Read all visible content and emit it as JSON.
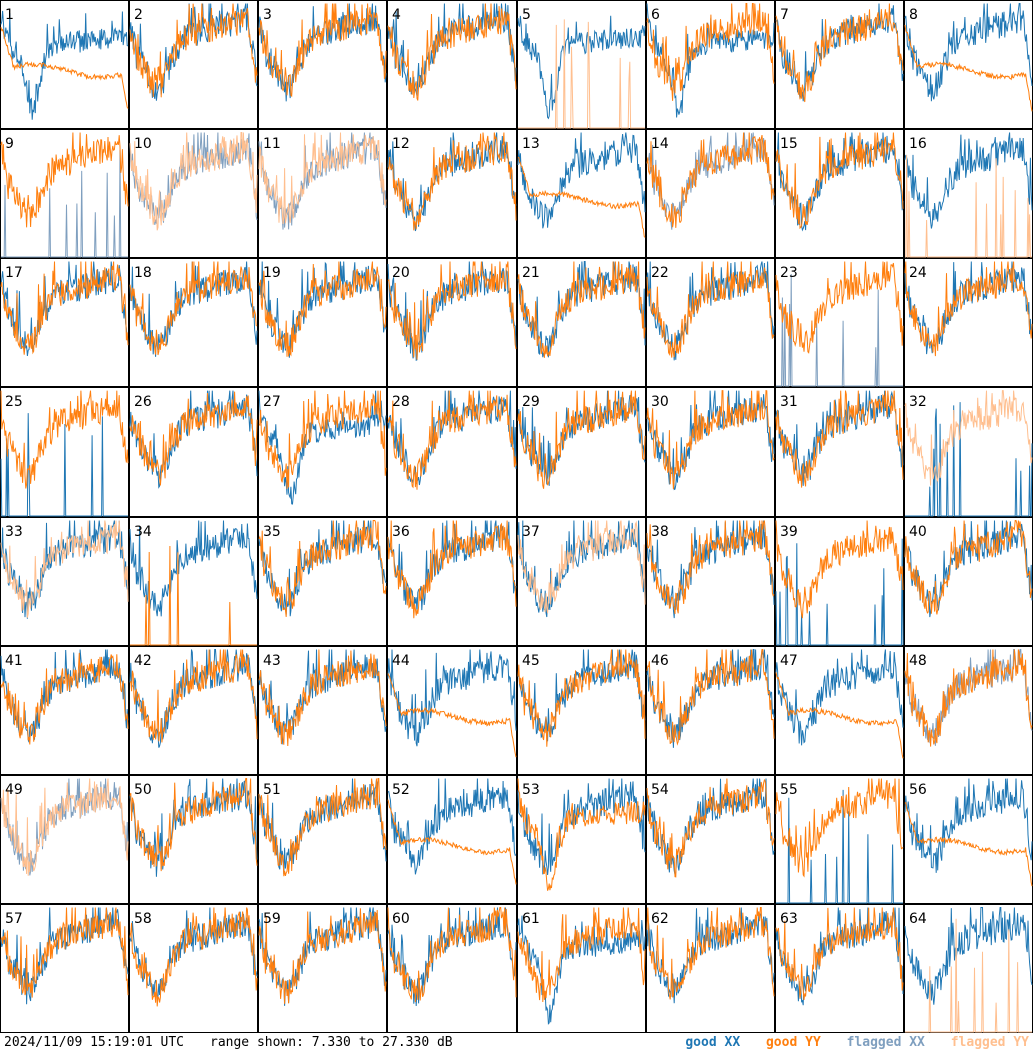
{
  "footer": {
    "timestamp": "2024/11/09 15:19:01 UTC",
    "range_text": "range shown: 7.330 to 27.330 dB"
  },
  "legend": {
    "good_xx": {
      "label": "good XX",
      "color": "#1f77b4"
    },
    "good_yy": {
      "label": "good YY",
      "color": "#ff7f0e"
    },
    "flagged_xx": {
      "label": "flagged XX",
      "color": "#7f9fbf"
    },
    "flagged_yy": {
      "label": "flagged YY",
      "color": "#ffbf8f"
    }
  },
  "chart_data": {
    "type": "line",
    "ylim": [
      7.33,
      27.33
    ],
    "yunit": "dB",
    "grid_rows": 8,
    "grid_cols": 8,
    "panels": [
      {
        "label": "1",
        "xx": "good",
        "yy": "good",
        "xxp": "dip",
        "yyp": "flat"
      },
      {
        "label": "2",
        "xx": "good",
        "yy": "good",
        "xxp": "normal",
        "yyp": "normal"
      },
      {
        "label": "3",
        "xx": "good",
        "yy": "good",
        "xxp": "normal",
        "yyp": "normal"
      },
      {
        "label": "4",
        "xx": "good",
        "yy": "good",
        "xxp": "normal",
        "yyp": "normal"
      },
      {
        "label": "5",
        "xx": "good",
        "yy": "flagged",
        "xxp": "dip",
        "yyp": "spikes"
      },
      {
        "label": "6",
        "xx": "good",
        "yy": "good",
        "xxp": "dip",
        "yyp": "normal"
      },
      {
        "label": "7",
        "xx": "good",
        "yy": "good",
        "xxp": "normal",
        "yyp": "normal"
      },
      {
        "label": "8",
        "xx": "good",
        "yy": "good",
        "xxp": "normal",
        "yyp": "flat"
      },
      {
        "label": "9",
        "xx": "flagged",
        "yy": "good",
        "xxp": "spikes",
        "yyp": "normal"
      },
      {
        "label": "10",
        "xx": "flagged",
        "yy": "flagged",
        "xxp": "normal",
        "yyp": "normal"
      },
      {
        "label": "11",
        "xx": "flagged",
        "yy": "flagged",
        "xxp": "normal",
        "yyp": "normal"
      },
      {
        "label": "12",
        "xx": "good",
        "yy": "good",
        "xxp": "normal",
        "yyp": "normal"
      },
      {
        "label": "13",
        "xx": "good",
        "yy": "good",
        "xxp": "normal",
        "yyp": "flat"
      },
      {
        "label": "14",
        "xx": "flagged",
        "yy": "good",
        "xxp": "normal",
        "yyp": "normal"
      },
      {
        "label": "15",
        "xx": "good",
        "yy": "good",
        "xxp": "normal",
        "yyp": "normal"
      },
      {
        "label": "16",
        "xx": "good",
        "yy": "flagged",
        "xxp": "normal",
        "yyp": "spikes"
      },
      {
        "label": "17",
        "xx": "good",
        "yy": "good",
        "xxp": "normal",
        "yyp": "normal"
      },
      {
        "label": "18",
        "xx": "good",
        "yy": "good",
        "xxp": "normal",
        "yyp": "normal"
      },
      {
        "label": "19",
        "xx": "good",
        "yy": "good",
        "xxp": "normal",
        "yyp": "normal"
      },
      {
        "label": "20",
        "xx": "good",
        "yy": "good",
        "xxp": "normal",
        "yyp": "normal"
      },
      {
        "label": "21",
        "xx": "good",
        "yy": "good",
        "xxp": "normal",
        "yyp": "normal"
      },
      {
        "label": "22",
        "xx": "good",
        "yy": "good",
        "xxp": "normal",
        "yyp": "normal"
      },
      {
        "label": "23",
        "xx": "flagged",
        "yy": "good",
        "xxp": "spikes",
        "yyp": "normal"
      },
      {
        "label": "24",
        "xx": "good",
        "yy": "good",
        "xxp": "normal",
        "yyp": "normal"
      },
      {
        "label": "25",
        "xx": "good",
        "yy": "good",
        "xxp": "spikes",
        "yyp": "normal"
      },
      {
        "label": "26",
        "xx": "good",
        "yy": "good",
        "xxp": "normal",
        "yyp": "normal"
      },
      {
        "label": "27",
        "xx": "good",
        "yy": "good",
        "xxp": "dip",
        "yyp": "normal"
      },
      {
        "label": "28",
        "xx": "good",
        "yy": "good",
        "xxp": "normal",
        "yyp": "normal"
      },
      {
        "label": "29",
        "xx": "good",
        "yy": "good",
        "xxp": "normal",
        "yyp": "normal"
      },
      {
        "label": "30",
        "xx": "good",
        "yy": "good",
        "xxp": "normal",
        "yyp": "normal"
      },
      {
        "label": "31",
        "xx": "good",
        "yy": "good",
        "xxp": "normal",
        "yyp": "normal"
      },
      {
        "label": "32",
        "xx": "good",
        "yy": "flagged",
        "xxp": "spikes",
        "yyp": "normal"
      },
      {
        "label": "33",
        "xx": "good",
        "yy": "flagged",
        "xxp": "normal",
        "yyp": "normal"
      },
      {
        "label": "34",
        "xx": "good",
        "yy": "good",
        "xxp": "normal",
        "yyp": "spikes"
      },
      {
        "label": "35",
        "xx": "good",
        "yy": "good",
        "xxp": "normal",
        "yyp": "normal"
      },
      {
        "label": "36",
        "xx": "good",
        "yy": "good",
        "xxp": "normal",
        "yyp": "normal"
      },
      {
        "label": "37",
        "xx": "good",
        "yy": "flagged",
        "xxp": "normal",
        "yyp": "normal"
      },
      {
        "label": "38",
        "xx": "good",
        "yy": "good",
        "xxp": "normal",
        "yyp": "normal"
      },
      {
        "label": "39",
        "xx": "good",
        "yy": "good",
        "xxp": "spikes",
        "yyp": "normal"
      },
      {
        "label": "40",
        "xx": "good",
        "yy": "good",
        "xxp": "normal",
        "yyp": "normal"
      },
      {
        "label": "41",
        "xx": "good",
        "yy": "good",
        "xxp": "normal",
        "yyp": "normal"
      },
      {
        "label": "42",
        "xx": "good",
        "yy": "good",
        "xxp": "normal",
        "yyp": "normal"
      },
      {
        "label": "43",
        "xx": "good",
        "yy": "good",
        "xxp": "normal",
        "yyp": "normal"
      },
      {
        "label": "44",
        "xx": "good",
        "yy": "good",
        "xxp": "normal",
        "yyp": "flat"
      },
      {
        "label": "45",
        "xx": "good",
        "yy": "good",
        "xxp": "normal",
        "yyp": "normal"
      },
      {
        "label": "46",
        "xx": "good",
        "yy": "good",
        "xxp": "normal",
        "yyp": "normal"
      },
      {
        "label": "47",
        "xx": "good",
        "yy": "good",
        "xxp": "normal",
        "yyp": "flat"
      },
      {
        "label": "48",
        "xx": "flagged",
        "yy": "good",
        "xxp": "normal",
        "yyp": "normal"
      },
      {
        "label": "49",
        "xx": "flagged",
        "yy": "flagged",
        "xxp": "normal",
        "yyp": "normal"
      },
      {
        "label": "50",
        "xx": "good",
        "yy": "good",
        "xxp": "normal",
        "yyp": "normal"
      },
      {
        "label": "51",
        "xx": "good",
        "yy": "good",
        "xxp": "normal",
        "yyp": "normal"
      },
      {
        "label": "52",
        "xx": "good",
        "yy": "good",
        "xxp": "normal",
        "yyp": "flat"
      },
      {
        "label": "53",
        "xx": "good",
        "yy": "good",
        "xxp": "normal",
        "yyp": "dip"
      },
      {
        "label": "54",
        "xx": "good",
        "yy": "good",
        "xxp": "normal",
        "yyp": "normal"
      },
      {
        "label": "55",
        "xx": "good",
        "yy": "good",
        "xxp": "spikes",
        "yyp": "normal"
      },
      {
        "label": "56",
        "xx": "good",
        "yy": "good",
        "xxp": "normal",
        "yyp": "flat"
      },
      {
        "label": "57",
        "xx": "good",
        "yy": "good",
        "xxp": "normal",
        "yyp": "normal"
      },
      {
        "label": "58",
        "xx": "good",
        "yy": "good",
        "xxp": "normal",
        "yyp": "normal"
      },
      {
        "label": "59",
        "xx": "good",
        "yy": "good",
        "xxp": "normal",
        "yyp": "normal"
      },
      {
        "label": "60",
        "xx": "good",
        "yy": "good",
        "xxp": "normal",
        "yyp": "normal"
      },
      {
        "label": "61",
        "xx": "good",
        "yy": "good",
        "xxp": "dip",
        "yyp": "normal"
      },
      {
        "label": "62",
        "xx": "good",
        "yy": "good",
        "xxp": "normal",
        "yyp": "normal"
      },
      {
        "label": "63",
        "xx": "good",
        "yy": "good",
        "xxp": "normal",
        "yyp": "normal"
      },
      {
        "label": "64",
        "xx": "good",
        "yy": "flagged",
        "xxp": "normal",
        "yyp": "spikes"
      }
    ]
  }
}
